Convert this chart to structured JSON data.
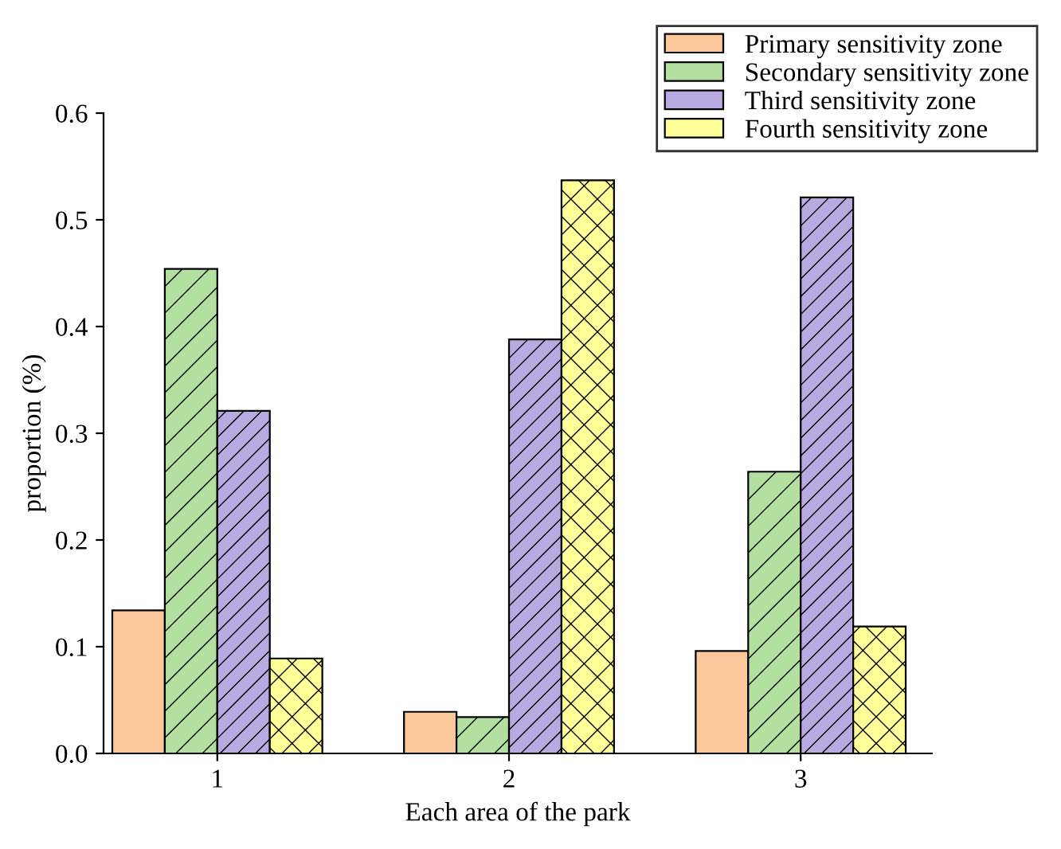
{
  "chart_data": {
    "type": "bar",
    "xlabel": "Each area of the park",
    "ylabel": "proportion (%)",
    "categories": [
      "1",
      "2",
      "3"
    ],
    "series": [
      {
        "name": "Primary sensitivity zone",
        "color": "#fcc89b",
        "values": [
          0.134,
          0.039,
          0.096
        ]
      },
      {
        "name": "Secondary sensitivity zone",
        "color": "#b3e0a0",
        "values": [
          0.454,
          0.034,
          0.264
        ]
      },
      {
        "name": "Third sensitivity zone",
        "color": "#b8a9e0",
        "values": [
          0.321,
          0.388,
          0.521
        ]
      },
      {
        "name": "Fourth sensitivity zone",
        "color": "#ffff99",
        "values": [
          0.089,
          0.537,
          0.119
        ]
      }
    ],
    "ylim": [
      0,
      0.6
    ],
    "yticks": [
      {
        "value": 0,
        "label": "0.0"
      },
      {
        "value": 0.1,
        "label": "0.1"
      },
      {
        "value": 0.2,
        "label": "0.2"
      },
      {
        "value": 0.3,
        "label": "0.3"
      },
      {
        "value": 0.4,
        "label": "0.4"
      },
      {
        "value": 0.5,
        "label": "0.5"
      },
      {
        "value": 0.6,
        "label": "0.6"
      }
    ],
    "grid": false,
    "legend": "top right"
  }
}
